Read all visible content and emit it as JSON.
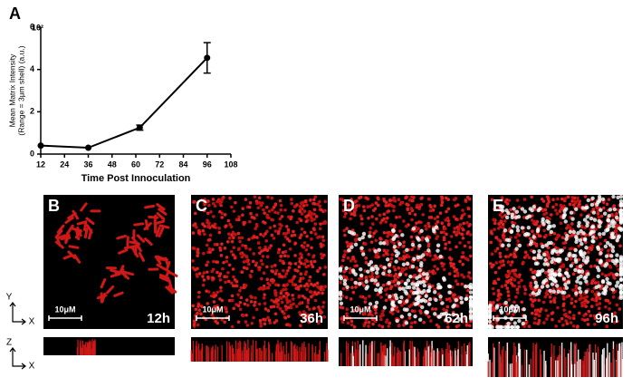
{
  "chart_data": {
    "type": "line",
    "panel_label": "A",
    "exponent_label": "10²",
    "xlabel": "Time Post Innoculation",
    "ylabel": [
      "Mean Matrix Intensity",
      "(Range = 3μm shell) (a.u.)"
    ],
    "x": [
      12,
      36,
      62,
      96
    ],
    "values": [
      0.4,
      0.3,
      1.25,
      4.55
    ],
    "errors": [
      0,
      0,
      0.12,
      0.72
    ],
    "color": "#000000",
    "xlim": [
      12,
      108
    ],
    "xticks": [
      12,
      24,
      36,
      48,
      60,
      72,
      84,
      96,
      108
    ],
    "ylim": [
      0,
      6
    ],
    "yticks": [
      0,
      2,
      4,
      6
    ]
  },
  "panels": [
    {
      "label": "B",
      "scale": "10μM",
      "time": "12h"
    },
    {
      "label": "C",
      "scale": "10μM",
      "time": "36h"
    },
    {
      "label": "D",
      "scale": "10μM",
      "time": "62h"
    },
    {
      "label": "E",
      "scale": "10μM",
      "time": "96h"
    }
  ],
  "axis_glyphs": {
    "top": [
      "Y",
      "X"
    ],
    "side": [
      "Z",
      "X"
    ]
  }
}
